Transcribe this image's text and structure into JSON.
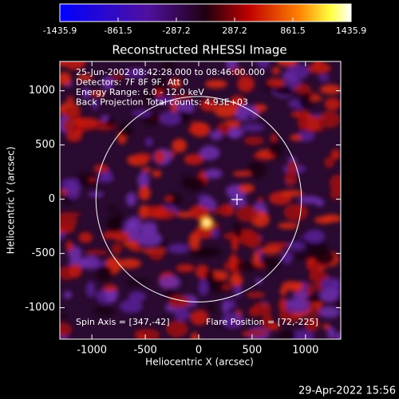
{
  "chart_data": {
    "type": "image",
    "title": "Reconstructed RHESSI Image",
    "annotations": [
      "25-Jun-2002 08:42:28.000 to 08:46:00.000",
      "Detectors: 7F 8F 9F, Att 0",
      "Energy Range: 6.0 - 12.0 keV",
      "Back Projection     Total counts: 4.93E+03"
    ],
    "spin_axis": "Spin Axis = [347,-42]",
    "flare_position": "Flare Position = [72,-225]",
    "xlabel": "Heliocentric X (arcsec)",
    "ylabel": "Heliocentric Y (arcsec)",
    "xlim": [
      -1300,
      1330
    ],
    "ylim": [
      -1290,
      1270
    ],
    "xticks": [
      -1000,
      -500,
      0,
      500,
      1000
    ],
    "yticks": [
      -1000,
      -500,
      0,
      500,
      1000
    ],
    "colorbar": {
      "lim": [
        -1435.9,
        1435.9
      ],
      "ticks": [
        -1435.9,
        -861.5,
        -287.2,
        287.2,
        861.5,
        1435.9
      ]
    },
    "timestamp": "29-Apr-2022 15:56"
  }
}
